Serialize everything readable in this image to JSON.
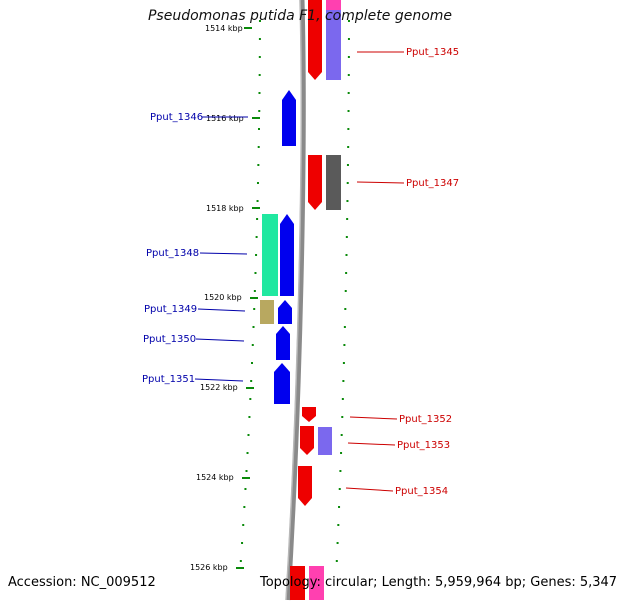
{
  "title": "Pseudomonas putida F1, complete genome",
  "footer": {
    "accession": "Accession: NC_009512",
    "summary": "Topology: circular; Length: 5,959,964 bp; Genes: 5,347"
  },
  "ticks": [
    "1514 kbp",
    "1516 kbp",
    "1518 kbp",
    "1520 kbp",
    "1522 kbp",
    "1524 kbp",
    "1526 kbp"
  ],
  "gene_labels": {
    "left": [
      "Pput_1346",
      "Pput_1348",
      "Pput_1349",
      "Pput_1350",
      "Pput_1351"
    ],
    "right": [
      "Pput_1345",
      "Pput_1347",
      "Pput_1352",
      "Pput_1353",
      "Pput_1354"
    ]
  },
  "colors": {
    "minus_strand_label": "#0000aa",
    "plus_strand_label": "#cc0000",
    "gene_blue": "#0000ee",
    "gene_red": "#ee0000",
    "gene_lavender": "#7b68ee",
    "gene_dark_gray": "#5a5a5a",
    "gene_mint": "#20e8a0",
    "gene_khaki": "#b8a860",
    "gene_pink": "#ff40b0",
    "backbone": "#888888",
    "tick_marks": "#0a8a0a"
  }
}
